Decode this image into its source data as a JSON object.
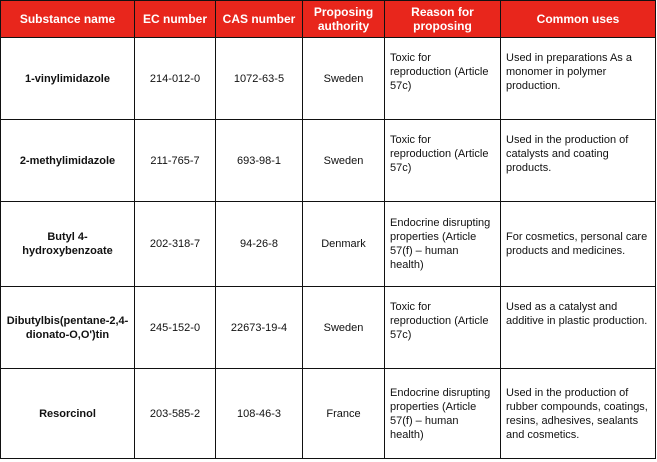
{
  "table": {
    "headers": [
      "Substance name",
      "EC number",
      "CAS number",
      "Proposing authority",
      "Reason for proposing",
      "Common uses"
    ],
    "rows": [
      {
        "name": "1-vinylimidazole",
        "ec": "214-012-0",
        "cas": "1072-63-5",
        "authority": "Sweden",
        "reason": "Toxic for reproduction (Article 57c)",
        "uses": "Used in preparations As a monomer in polymer production."
      },
      {
        "name": "2-methylimidazole",
        "ec": "211-765-7",
        "cas": "693-98-1",
        "authority": "Sweden",
        "reason": "Toxic for reproduction (Article 57c)",
        "uses": "Used in the production of catalysts and coating products."
      },
      {
        "name": "Butyl 4-hydroxybenzoate",
        "ec": "202-318-7",
        "cas": "94-26-8",
        "authority": "Denmark",
        "reason": "Endocrine disrupting properties (Article 57(f) – human health)",
        "uses": "For cosmetics, personal care products and medicines."
      },
      {
        "name": "Dibutylbis(pentane-2,4-dionato-O,O')tin",
        "ec": "245-152-0",
        "cas": "22673-19-4",
        "authority": "Sweden",
        "reason": "Toxic for reproduction (Article 57c)",
        "uses": "Used as a catalyst and additive in plastic production."
      },
      {
        "name": "Resorcinol",
        "ec": "203-585-2",
        "cas": "108-46-3",
        "authority": "France",
        "reason": "Endocrine disrupting properties (Article 57(f) – human health)",
        "uses": "Used in the production of rubber compounds, coatings, resins, adhesives, sealants and cosmetics."
      }
    ]
  }
}
